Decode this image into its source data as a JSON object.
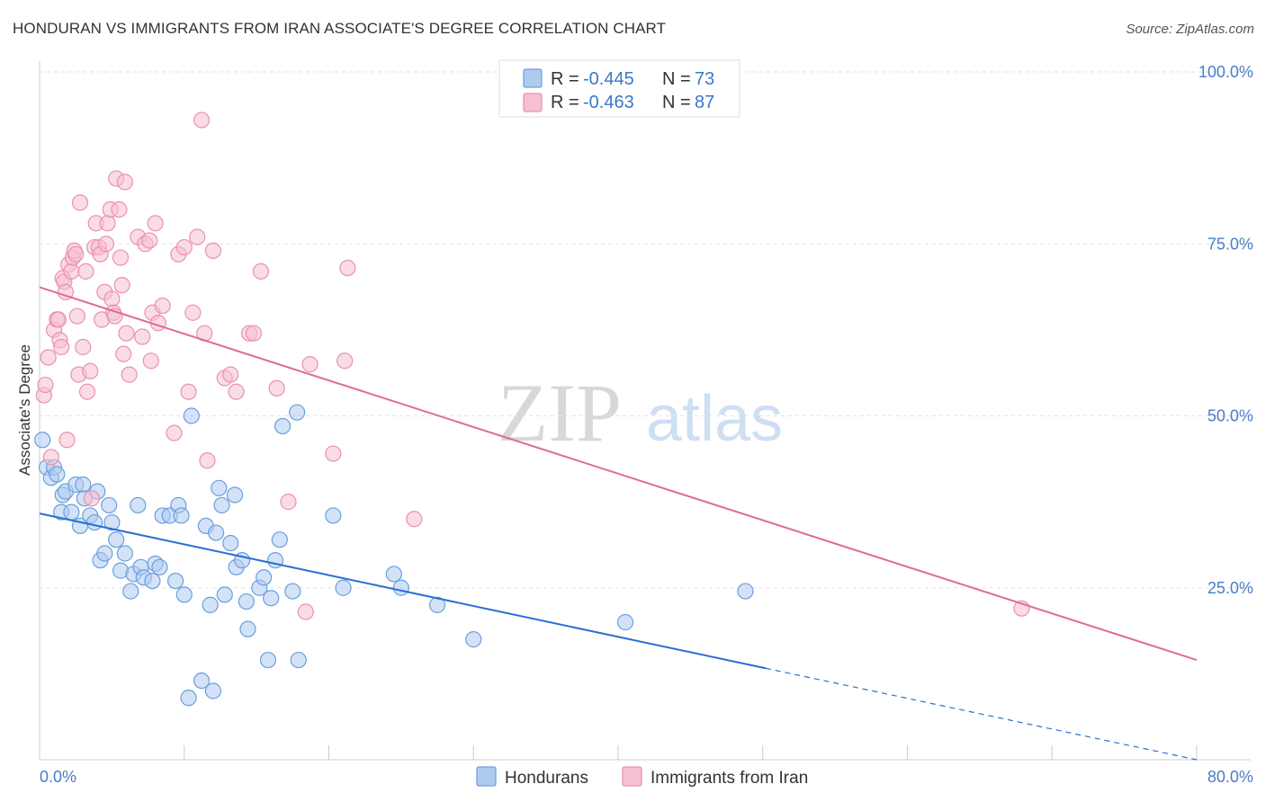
{
  "title": "HONDURAN VS IMMIGRANTS FROM IRAN ASSOCIATE'S DEGREE CORRELATION CHART",
  "source": "Source: ZipAtlas.com",
  "watermark": {
    "zip": "ZIP",
    "atlas": "atlas"
  },
  "colors": {
    "blue_fill": "#aecbf0",
    "blue_stroke": "#6a9fde",
    "blue_line": "#2a6fd1",
    "pink_fill": "#f6c0d0",
    "pink_stroke": "#ea91ad",
    "pink_line": "#e06b95",
    "tick_text": "#4a7cc9",
    "grid": "#e2e2e2"
  },
  "legend_top": [
    {
      "r_label": "R = ",
      "r_value": "-0.445",
      "n_label": "N = ",
      "n_value": "73"
    },
    {
      "r_label": "R = ",
      "r_value": "-0.463",
      "n_label": "N = ",
      "n_value": "87"
    }
  ],
  "legend_bottom": [
    "Hondurans",
    "Immigrants from Iran"
  ],
  "chart_data": {
    "type": "scatter",
    "title": "HONDURAN VS IMMIGRANTS FROM IRAN ASSOCIATE'S DEGREE CORRELATION CHART",
    "xlabel": "",
    "ylabel": "Associate's Degree",
    "xlim": [
      0,
      80
    ],
    "ylim": [
      0,
      100
    ],
    "x_tick_labels": [
      "0.0%",
      "80.0%"
    ],
    "y_ticks": [
      25,
      50,
      75,
      100
    ],
    "y_tick_labels": [
      "25.0%",
      "50.0%",
      "75.0%",
      "100.0%"
    ],
    "grid": "horizontal dashed",
    "legend_position": "top-center",
    "series": [
      {
        "name": "Hondurans",
        "r": -0.445,
        "n": 73,
        "trend": {
          "x0": 0,
          "y0": 35.8,
          "x1": 50.2,
          "y1": 13.3,
          "dashed_to_x": 80,
          "dashed_to_y": 0
        },
        "points": [
          [
            0.2,
            46.5
          ],
          [
            0.5,
            42.5
          ],
          [
            0.8,
            41
          ],
          [
            1,
            42.5
          ],
          [
            1.2,
            41.5
          ],
          [
            1.5,
            36
          ],
          [
            1.6,
            38.5
          ],
          [
            1.8,
            39
          ],
          [
            2.2,
            36
          ],
          [
            2.5,
            40
          ],
          [
            2.8,
            34
          ],
          [
            3,
            40
          ],
          [
            3.1,
            38
          ],
          [
            3.5,
            35.5
          ],
          [
            3.8,
            34.5
          ],
          [
            4,
            39
          ],
          [
            4.2,
            29
          ],
          [
            4.5,
            30
          ],
          [
            4.8,
            37
          ],
          [
            5,
            34.5
          ],
          [
            5.3,
            32
          ],
          [
            5.6,
            27.5
          ],
          [
            5.9,
            30
          ],
          [
            6.3,
            24.5
          ],
          [
            6.5,
            27
          ],
          [
            6.8,
            37
          ],
          [
            7,
            28
          ],
          [
            7.2,
            26.5
          ],
          [
            7.8,
            26
          ],
          [
            8,
            28.5
          ],
          [
            8.3,
            28
          ],
          [
            8.5,
            35.5
          ],
          [
            9,
            35.5
          ],
          [
            9.4,
            26
          ],
          [
            9.6,
            37
          ],
          [
            9.8,
            35.5
          ],
          [
            10,
            24
          ],
          [
            10.5,
            50
          ],
          [
            10.3,
            9
          ],
          [
            11.2,
            11.5
          ],
          [
            11.5,
            34
          ],
          [
            11.8,
            22.5
          ],
          [
            12,
            10
          ],
          [
            12.2,
            33
          ],
          [
            12.4,
            39.5
          ],
          [
            12.6,
            37
          ],
          [
            12.8,
            24
          ],
          [
            13.2,
            31.5
          ],
          [
            13.5,
            38.5
          ],
          [
            13.6,
            28
          ],
          [
            14,
            29
          ],
          [
            14.3,
            23
          ],
          [
            14.4,
            19
          ],
          [
            15.2,
            25
          ],
          [
            15.5,
            26.5
          ],
          [
            15.8,
            14.5
          ],
          [
            16,
            23.5
          ],
          [
            16.3,
            29
          ],
          [
            16.6,
            32
          ],
          [
            16.8,
            48.5
          ],
          [
            17.5,
            24.5
          ],
          [
            17.8,
            50.5
          ],
          [
            17.9,
            14.5
          ],
          [
            20.3,
            35.5
          ],
          [
            21,
            25
          ],
          [
            24.5,
            27
          ],
          [
            25,
            25
          ],
          [
            27.5,
            22.5
          ],
          [
            30,
            17.5
          ],
          [
            40.5,
            20
          ],
          [
            48.8,
            24.5
          ]
        ]
      },
      {
        "name": "Immigrants from Iran",
        "r": -0.463,
        "n": 87,
        "trend": {
          "x0": 0,
          "y0": 68.7,
          "x1": 80,
          "y1": 14.5
        },
        "points": [
          [
            0.3,
            53
          ],
          [
            0.4,
            54.5
          ],
          [
            0.6,
            58.5
          ],
          [
            0.8,
            44
          ],
          [
            1,
            62.5
          ],
          [
            1.2,
            64
          ],
          [
            1.3,
            64
          ],
          [
            1.4,
            61
          ],
          [
            1.5,
            60
          ],
          [
            1.6,
            70
          ],
          [
            1.7,
            69.5
          ],
          [
            1.8,
            68
          ],
          [
            1.9,
            46.5
          ],
          [
            2,
            72
          ],
          [
            2.2,
            71
          ],
          [
            2.3,
            73
          ],
          [
            2.4,
            74
          ],
          [
            2.5,
            73.5
          ],
          [
            2.6,
            64.5
          ],
          [
            2.7,
            56
          ],
          [
            2.8,
            81
          ],
          [
            3,
            60
          ],
          [
            3.2,
            71
          ],
          [
            3.3,
            53.5
          ],
          [
            3.5,
            56.5
          ],
          [
            3.6,
            38
          ],
          [
            3.8,
            74.5
          ],
          [
            3.9,
            78
          ],
          [
            4.1,
            74.5
          ],
          [
            4.2,
            73.5
          ],
          [
            4.3,
            64
          ],
          [
            4.5,
            68
          ],
          [
            4.6,
            75
          ],
          [
            4.7,
            78
          ],
          [
            4.9,
            80
          ],
          [
            5,
            67
          ],
          [
            5.1,
            65
          ],
          [
            5.2,
            64.5
          ],
          [
            5.3,
            84.5
          ],
          [
            5.5,
            80
          ],
          [
            5.6,
            73
          ],
          [
            5.7,
            69
          ],
          [
            5.8,
            59
          ],
          [
            5.9,
            84
          ],
          [
            6,
            62
          ],
          [
            6.2,
            56
          ],
          [
            6.8,
            76
          ],
          [
            7.1,
            61.5
          ],
          [
            7.3,
            75
          ],
          [
            7.6,
            75.5
          ],
          [
            7.7,
            58
          ],
          [
            7.8,
            65
          ],
          [
            8,
            78
          ],
          [
            8.2,
            63.5
          ],
          [
            8.5,
            66
          ],
          [
            9.3,
            47.5
          ],
          [
            9.6,
            73.5
          ],
          [
            10,
            74.5
          ],
          [
            10.3,
            53.5
          ],
          [
            10.6,
            65
          ],
          [
            10.9,
            76
          ],
          [
            11.2,
            93
          ],
          [
            11.4,
            62
          ],
          [
            11.6,
            43.5
          ],
          [
            12,
            74
          ],
          [
            12.8,
            55.5
          ],
          [
            13.2,
            56
          ],
          [
            13.6,
            53.5
          ],
          [
            14.5,
            62
          ],
          [
            14.8,
            62
          ],
          [
            15.3,
            71
          ],
          [
            16.4,
            54
          ],
          [
            17.2,
            37.5
          ],
          [
            18.4,
            21.5
          ],
          [
            18.7,
            57.5
          ],
          [
            20.3,
            44.5
          ],
          [
            21.1,
            58
          ],
          [
            21.3,
            71.5
          ],
          [
            25.9,
            35
          ],
          [
            67.9,
            22
          ]
        ]
      }
    ]
  }
}
